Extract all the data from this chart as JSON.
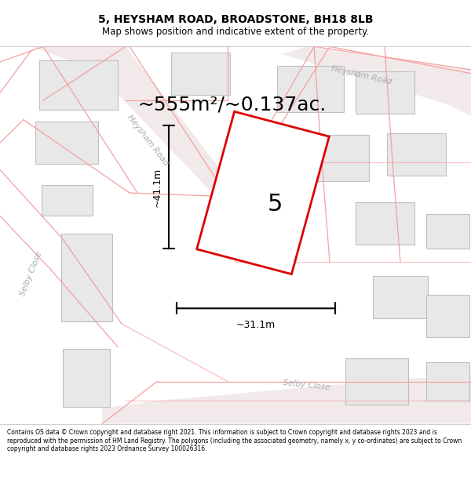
{
  "title_line1": "5, HEYSHAM ROAD, BROADSTONE, BH18 8LB",
  "title_line2": "Map shows position and indicative extent of the property.",
  "area_label": "~555m²/~0.137ac.",
  "number_label": "5",
  "dim_height": "~41.1m",
  "dim_width": "~31.1m",
  "road_label_heysham_left": "Heysham Road",
  "road_label_heysham_right": "Heysham Road",
  "road_label_selby_left": "Selby Close",
  "road_label_selby_bottom": "Selby Close",
  "footer_text": "Contains OS data © Crown copyright and database right 2021. This information is subject to Crown copyright and database rights 2023 and is reproduced with the permission of HM Land Registry. The polygons (including the associated geometry, namely x, y co-ordinates) are subject to Crown copyright and database rights 2023 Ordnance Survey 100026316.",
  "bg_color": "#ffffff",
  "map_bg": "#f7f7f7",
  "building_fill": "#e8e8e8",
  "building_edge": "#c0c0c0",
  "road_line_color": "#f5a0a0",
  "highlight_color": "#dd0000",
  "highlight_fill": "#ffffff",
  "text_color": "#000000",
  "road_text_color": "#aaaaaa",
  "fig_width": 6.0,
  "fig_height": 6.25,
  "title_fontsize": 10,
  "subtitle_fontsize": 8.5,
  "area_fontsize": 18,
  "dim_fontsize": 9,
  "road_fontsize": 7.5,
  "number_fontsize": 22,
  "footer_fontsize": 5.5
}
